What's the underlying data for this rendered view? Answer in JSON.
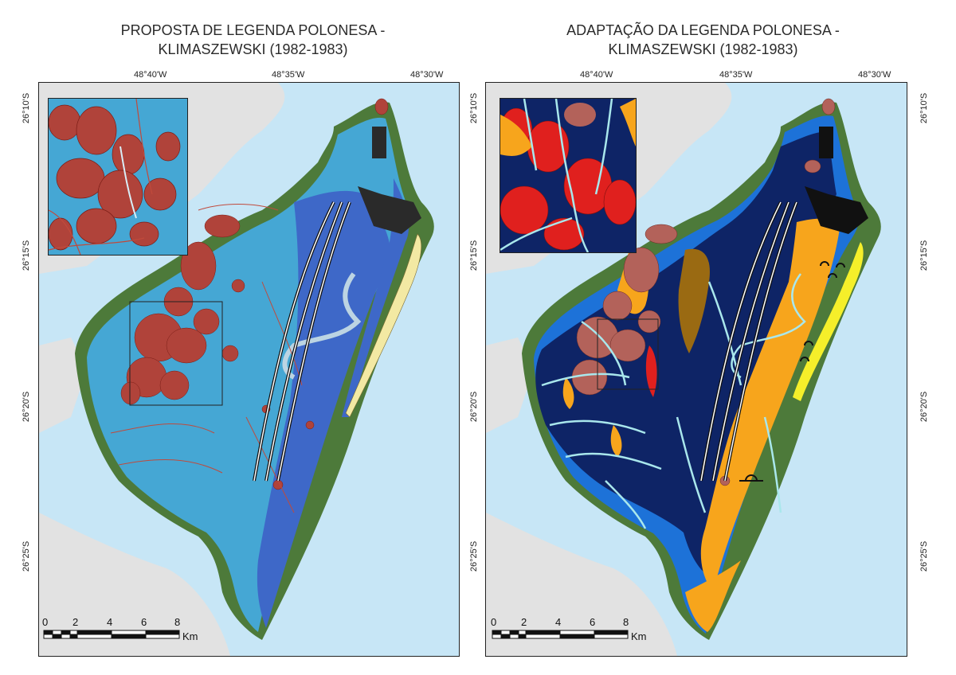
{
  "left": {
    "title_line1": "PROPOSTA DE LEGENDA POLONESA -",
    "title_line2": "KLIMASZEWSKI (1982-1983)"
  },
  "right": {
    "title_line1": "ADAPTAÇÃO DA LEGENDA POLONESA -",
    "title_line2": "KLIMASZEWSKI (1982-1983)"
  },
  "coords": {
    "lon": [
      "48°40'W",
      "48°35'W",
      "48°30'W"
    ],
    "lat": [
      "26°10'S",
      "26°15'S",
      "26°20'S",
      "26°25'S"
    ]
  },
  "scale": {
    "ticks": [
      "0",
      "2",
      "4",
      "6",
      "8"
    ],
    "unit": "Km"
  },
  "colors": {
    "sea": "#c7e6f6",
    "land_gray": "#e2e2e2",
    "left_plain": "#45a7d4",
    "left_coast": "#3e68c8",
    "hills": "#b0433a",
    "wetland_green": "#4d7a3a",
    "dark_blue": "#0e2466",
    "orange": "#f7a51c",
    "mid_blue": "#1d72d8",
    "channel": "#a9e7ec",
    "urban": "#2a2a2a",
    "beach_yellow": "#f5ef2a"
  }
}
